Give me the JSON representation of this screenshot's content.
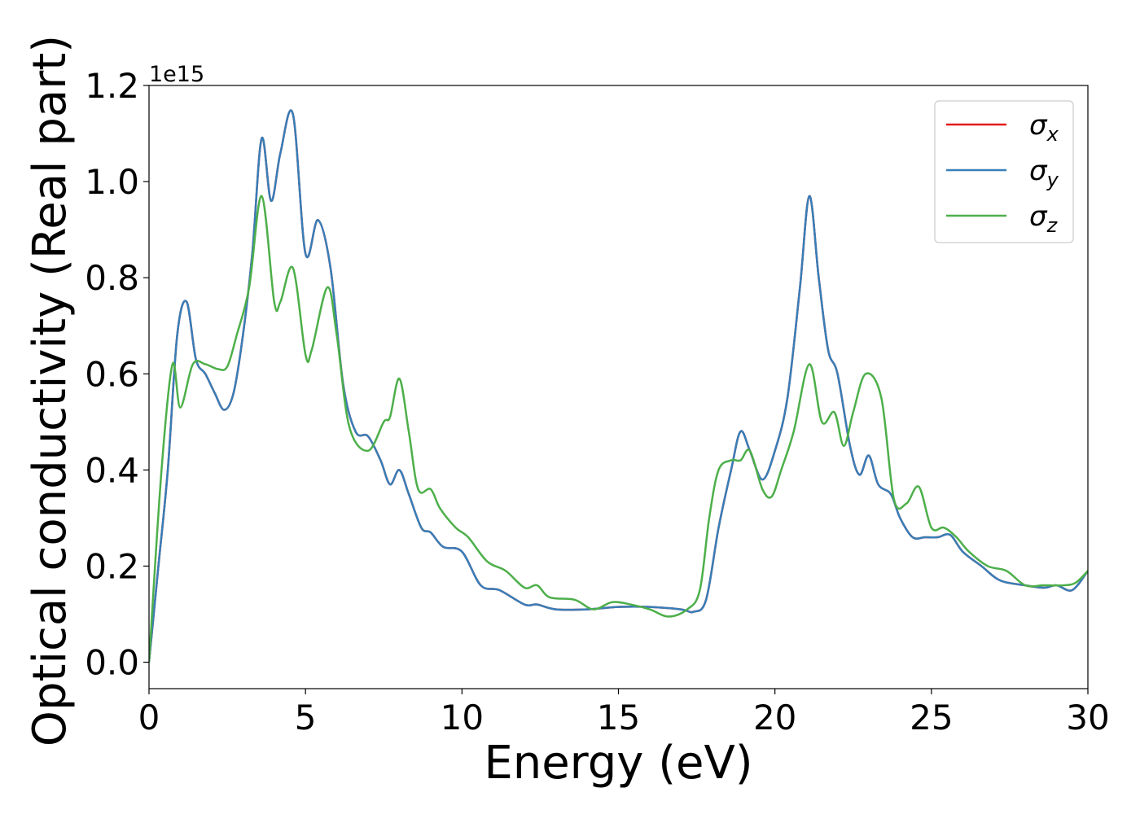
{
  "chart_data": {
    "type": "line",
    "title": "",
    "xlabel": "Energy (eV)",
    "ylabel": "Optical conductivity (Real part)",
    "offset_text": "1e15",
    "xlim": [
      0,
      30
    ],
    "ylim": [
      -0.055,
      1.2
    ],
    "xticks": [
      0,
      5,
      10,
      15,
      20,
      25,
      30
    ],
    "xtick_labels": [
      "0",
      "5",
      "10",
      "15",
      "20",
      "25",
      "30"
    ],
    "yticks": [
      0.0,
      0.2,
      0.4,
      0.6,
      0.8,
      1.0,
      1.2
    ],
    "ytick_labels": [
      "0.0",
      "0.2",
      "0.4",
      "0.6",
      "0.8",
      "1.0",
      "1.2"
    ],
    "grid": false,
    "legend_position": "top-right",
    "series": [
      {
        "name": "σx",
        "legend_base": "σ",
        "legend_sub": "x",
        "color": "#e41a1c",
        "x": [
          0,
          0.3,
          0.6,
          0.9,
          1.2,
          1.5,
          1.8,
          2.1,
          2.4,
          2.7,
          3.0,
          3.3,
          3.6,
          3.9,
          4.2,
          4.6,
          5.0,
          5.4,
          5.8,
          6.2,
          6.6,
          7.0,
          7.4,
          7.7,
          8.0,
          8.3,
          8.7,
          9.0,
          9.4,
          10.0,
          10.6,
          11.2,
          12.0,
          12.4,
          13.0,
          14.0,
          15.0,
          16.0,
          17.0,
          17.4,
          17.8,
          18.2,
          18.6,
          18.9,
          19.2,
          19.6,
          20.0,
          20.4,
          20.8,
          21.1,
          21.4,
          21.7,
          22.0,
          22.4,
          22.7,
          23.0,
          23.3,
          23.7,
          24.0,
          24.4,
          24.8,
          25.2,
          25.6,
          26.0,
          26.6,
          27.2,
          28.0,
          28.6,
          29.0,
          29.5,
          30.0
        ],
        "y": [
          0.0,
          0.2,
          0.4,
          0.68,
          0.75,
          0.63,
          0.6,
          0.56,
          0.525,
          0.56,
          0.68,
          0.85,
          1.09,
          0.96,
          1.06,
          1.14,
          0.85,
          0.92,
          0.82,
          0.58,
          0.48,
          0.47,
          0.42,
          0.37,
          0.4,
          0.35,
          0.28,
          0.27,
          0.24,
          0.23,
          0.16,
          0.15,
          0.12,
          0.12,
          0.11,
          0.11,
          0.115,
          0.115,
          0.11,
          0.105,
          0.13,
          0.28,
          0.4,
          0.48,
          0.44,
          0.38,
          0.44,
          0.55,
          0.78,
          0.97,
          0.8,
          0.65,
          0.6,
          0.45,
          0.39,
          0.43,
          0.37,
          0.35,
          0.3,
          0.26,
          0.26,
          0.26,
          0.265,
          0.23,
          0.2,
          0.17,
          0.16,
          0.155,
          0.16,
          0.15,
          0.19
        ]
      },
      {
        "name": "σy",
        "legend_base": "σ",
        "legend_sub": "y",
        "color": "#377eb8",
        "x": [
          0,
          0.3,
          0.6,
          0.9,
          1.2,
          1.5,
          1.8,
          2.1,
          2.4,
          2.7,
          3.0,
          3.3,
          3.6,
          3.9,
          4.2,
          4.6,
          5.0,
          5.4,
          5.8,
          6.2,
          6.6,
          7.0,
          7.4,
          7.7,
          8.0,
          8.3,
          8.7,
          9.0,
          9.4,
          10.0,
          10.6,
          11.2,
          12.0,
          12.4,
          13.0,
          14.0,
          15.0,
          16.0,
          17.0,
          17.4,
          17.8,
          18.2,
          18.6,
          18.9,
          19.2,
          19.6,
          20.0,
          20.4,
          20.8,
          21.1,
          21.4,
          21.7,
          22.0,
          22.4,
          22.7,
          23.0,
          23.3,
          23.7,
          24.0,
          24.4,
          24.8,
          25.2,
          25.6,
          26.0,
          26.6,
          27.2,
          28.0,
          28.6,
          29.0,
          29.5,
          30.0
        ],
        "y": [
          0.0,
          0.2,
          0.4,
          0.68,
          0.75,
          0.63,
          0.6,
          0.56,
          0.525,
          0.56,
          0.68,
          0.85,
          1.09,
          0.96,
          1.06,
          1.14,
          0.85,
          0.92,
          0.82,
          0.58,
          0.48,
          0.47,
          0.42,
          0.37,
          0.4,
          0.35,
          0.28,
          0.27,
          0.24,
          0.23,
          0.16,
          0.15,
          0.12,
          0.12,
          0.11,
          0.11,
          0.115,
          0.115,
          0.11,
          0.105,
          0.13,
          0.28,
          0.4,
          0.48,
          0.44,
          0.38,
          0.44,
          0.55,
          0.78,
          0.97,
          0.8,
          0.65,
          0.6,
          0.45,
          0.39,
          0.43,
          0.37,
          0.35,
          0.3,
          0.26,
          0.26,
          0.26,
          0.265,
          0.23,
          0.2,
          0.17,
          0.16,
          0.155,
          0.16,
          0.15,
          0.19
        ]
      },
      {
        "name": "σz",
        "legend_base": "σ",
        "legend_sub": "z",
        "color": "#4daf4a",
        "x": [
          0,
          0.4,
          0.75,
          1.0,
          1.4,
          1.8,
          2.2,
          2.5,
          2.8,
          3.2,
          3.6,
          4.0,
          4.2,
          4.6,
          5.0,
          5.2,
          5.7,
          6.0,
          6.4,
          7.0,
          7.5,
          7.7,
          8.0,
          8.3,
          8.6,
          9.0,
          9.3,
          9.8,
          10.2,
          10.8,
          11.4,
          12.0,
          12.4,
          12.8,
          13.6,
          14.2,
          14.8,
          15.4,
          16.0,
          16.6,
          17.2,
          17.6,
          17.9,
          18.2,
          18.6,
          18.9,
          19.2,
          19.6,
          19.9,
          20.2,
          20.6,
          21.1,
          21.5,
          21.9,
          22.2,
          22.5,
          22.9,
          23.4,
          23.8,
          24.2,
          24.6,
          25.0,
          25.4,
          25.8,
          26.2,
          26.8,
          27.4,
          28.0,
          28.6,
          29.2,
          29.6,
          30.0
        ],
        "y": [
          0.0,
          0.4,
          0.62,
          0.53,
          0.62,
          0.62,
          0.61,
          0.615,
          0.68,
          0.78,
          0.97,
          0.75,
          0.75,
          0.82,
          0.64,
          0.65,
          0.78,
          0.68,
          0.49,
          0.44,
          0.5,
          0.51,
          0.59,
          0.48,
          0.36,
          0.36,
          0.32,
          0.28,
          0.26,
          0.21,
          0.19,
          0.155,
          0.16,
          0.135,
          0.13,
          0.11,
          0.125,
          0.12,
          0.11,
          0.095,
          0.11,
          0.15,
          0.3,
          0.4,
          0.42,
          0.42,
          0.44,
          0.36,
          0.345,
          0.4,
          0.48,
          0.62,
          0.5,
          0.52,
          0.45,
          0.52,
          0.6,
          0.55,
          0.34,
          0.33,
          0.365,
          0.28,
          0.28,
          0.26,
          0.23,
          0.2,
          0.19,
          0.16,
          0.16,
          0.16,
          0.165,
          0.19
        ]
      }
    ]
  }
}
